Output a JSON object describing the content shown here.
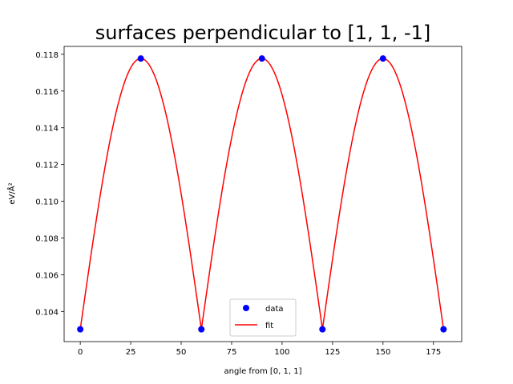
{
  "chart_data": {
    "type": "line",
    "title": "surfaces perpendicular to [1, 1, -1]",
    "xlabel": "angle from [0, 1, 1]",
    "ylabel": "eV/Å²",
    "xlim": [
      -8,
      189
    ],
    "ylim": [
      0.10236,
      0.11843
    ],
    "x_ticks": [
      0,
      25,
      50,
      75,
      100,
      125,
      150,
      175
    ],
    "x_tick_labels": [
      "0",
      "25",
      "50",
      "75",
      "100",
      "125",
      "150",
      "175"
    ],
    "y_ticks": [
      0.104,
      0.106,
      0.108,
      0.11,
      0.112,
      0.114,
      0.116,
      0.118
    ],
    "y_tick_labels": [
      "0.104",
      "0.106",
      "0.108",
      "0.110",
      "0.112",
      "0.114",
      "0.116",
      "0.118"
    ],
    "grid": false,
    "legend_position": "bottom-center",
    "series": [
      {
        "name": "data",
        "kind": "scatter",
        "color": "#0000ff",
        "x": [
          0,
          30,
          60,
          90,
          120,
          150,
          180
        ],
        "y": [
          0.10303,
          0.11777,
          0.10303,
          0.11777,
          0.10303,
          0.11777,
          0.10303
        ]
      },
      {
        "name": "fit",
        "kind": "line",
        "color": "#ff0000",
        "period_deg": 60,
        "min": 0.10303,
        "max": 0.11777,
        "x_range": [
          0,
          180
        ]
      }
    ]
  }
}
